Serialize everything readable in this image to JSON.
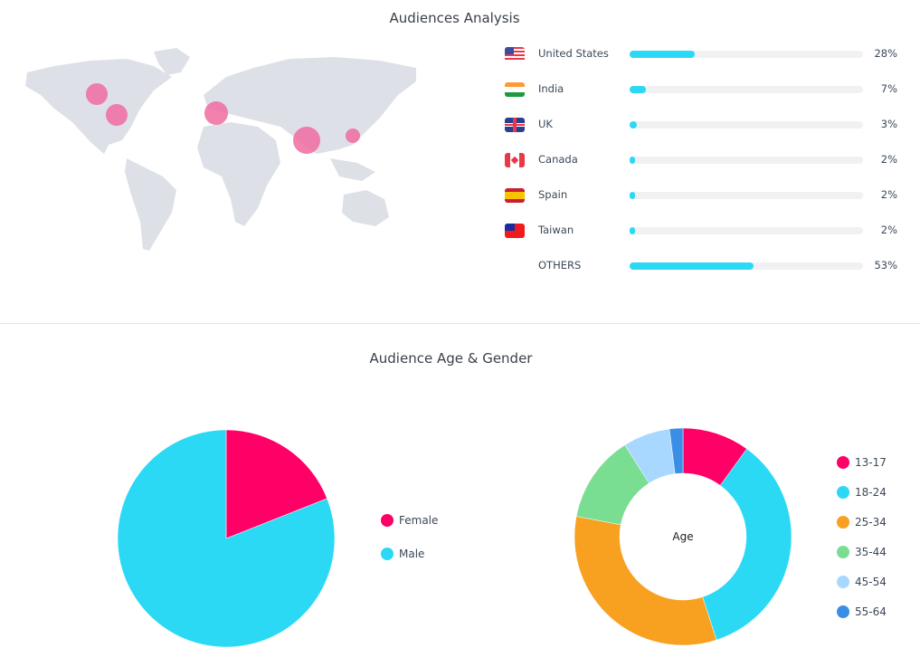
{
  "audiences": {
    "title": "Audiences Analysis",
    "countries": [
      {
        "name": "United States",
        "percent": 28,
        "label": "28%",
        "flag": "us-flag"
      },
      {
        "name": "India",
        "percent": 7,
        "label": "7%",
        "flag": "india-flag"
      },
      {
        "name": "UK",
        "percent": 3,
        "label": "3%",
        "flag": "uk-flag"
      },
      {
        "name": "Canada",
        "percent": 2,
        "label": "2%",
        "flag": "canada-flag"
      },
      {
        "name": "Spain",
        "percent": 2,
        "label": "2%",
        "flag": "spain-flag"
      },
      {
        "name": "Taiwan",
        "percent": 2,
        "label": "2%",
        "flag": "taiwan-flag"
      },
      {
        "name": "OTHERS",
        "percent": 53,
        "label": "53%",
        "flag": ""
      }
    ],
    "bar_color": "#2bd9f5",
    "bubble_color": "#f06ba0"
  },
  "age_gender": {
    "title": "Audience Age & Gender"
  },
  "chart_data": [
    {
      "type": "pie",
      "title": "",
      "categories": [
        "Female",
        "Male"
      ],
      "values": [
        19,
        81
      ],
      "colors": [
        "#ff0066",
        "#2bd9f5"
      ],
      "legend": "right"
    },
    {
      "type": "pie",
      "title": "",
      "center_label": "Age",
      "categories": [
        "13-17",
        "18-24",
        "25-34",
        "35-44",
        "45-54",
        "55-64"
      ],
      "values": [
        10,
        35,
        33,
        13,
        7,
        2
      ],
      "colors": [
        "#ff0066",
        "#2bd9f5",
        "#f8a020",
        "#7ade92",
        "#a8d8ff",
        "#3a8ee6"
      ],
      "legend": "right"
    }
  ]
}
